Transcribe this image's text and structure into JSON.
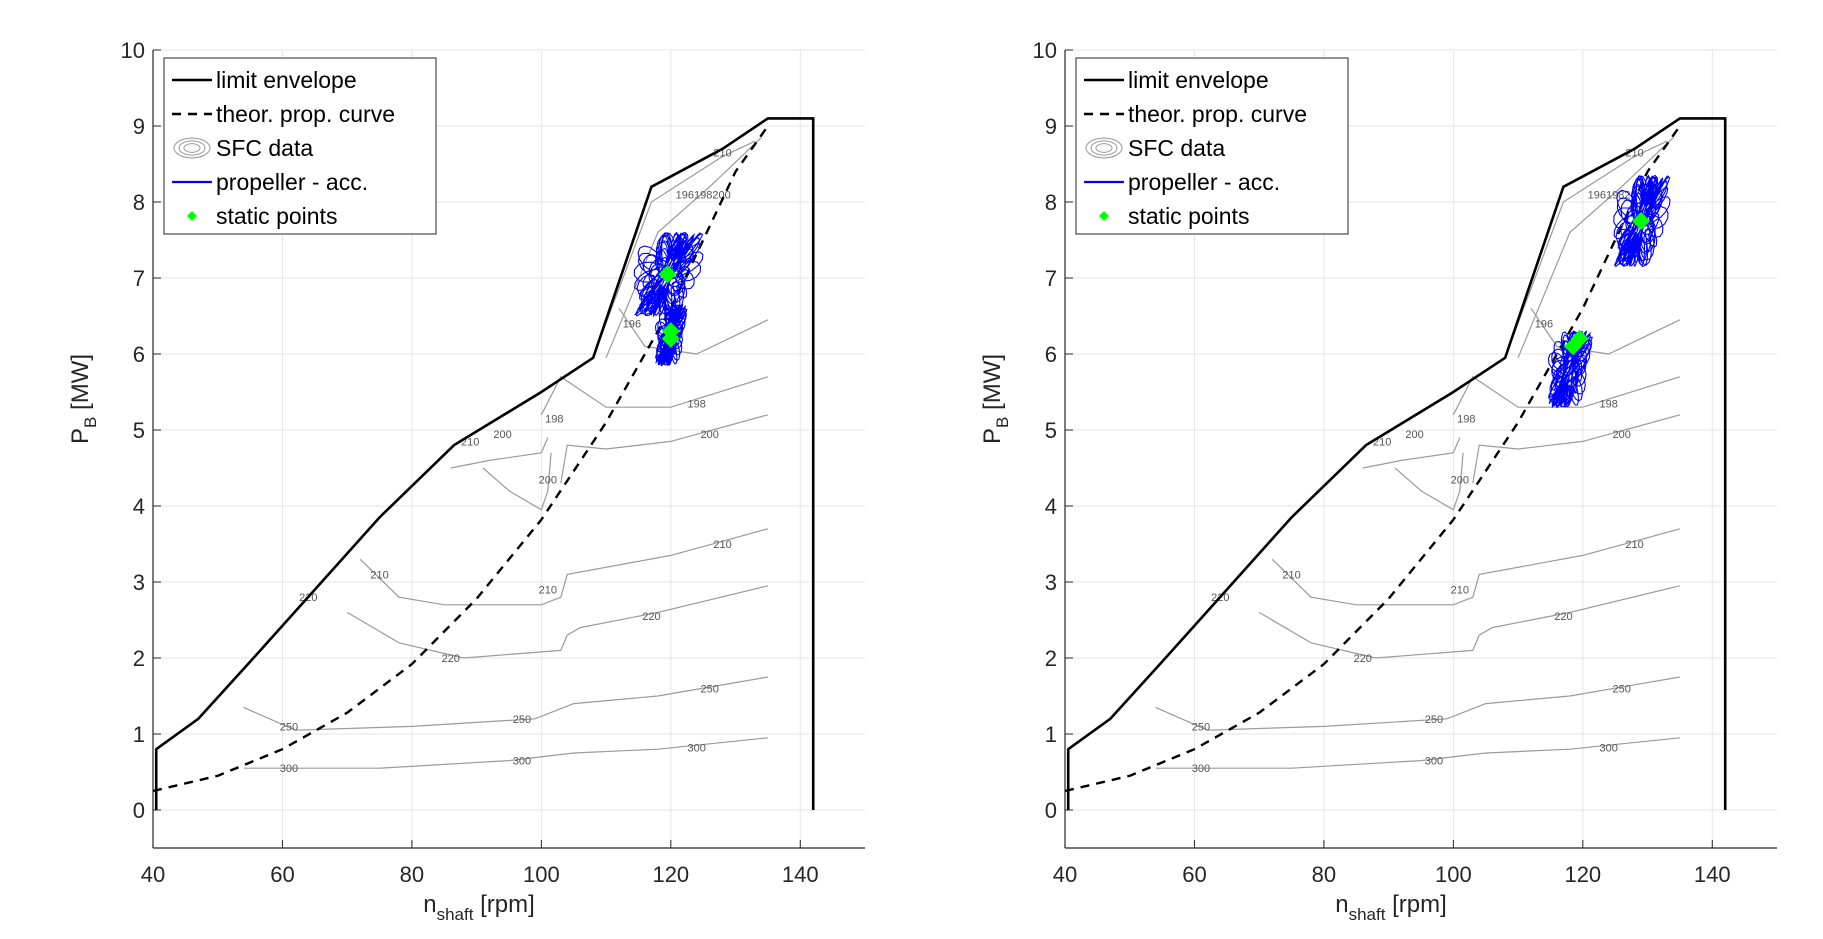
{
  "chart_data": [
    {
      "type": "line",
      "xlim": [
        40,
        150
      ],
      "ylim": [
        -0.5,
        10
      ],
      "x_ticks": [
        40,
        60,
        80,
        100,
        120,
        140
      ],
      "y_ticks": [
        0,
        1,
        2,
        3,
        4,
        5,
        6,
        7,
        8,
        9,
        10
      ],
      "xlabel": "n",
      "xlabel_sub": "shaft",
      "xlabel_unit": "[rpm]",
      "ylabel": "P",
      "ylabel_sub": "B",
      "ylabel_unit": "[MW]",
      "grid": true,
      "legend_position": "top-left",
      "legend": [
        "limit envelope",
        "theor. prop. curve",
        "SFC data",
        "propeller - acc.",
        "static points"
      ],
      "series": [
        {
          "name": "limit envelope",
          "color": "#000000",
          "style": "solid",
          "x": [
            40.5,
            40.5,
            47,
            55,
            65,
            75,
            86.5,
            100,
            108,
            117,
            128,
            135,
            142,
            142
          ],
          "y": [
            0,
            0.8,
            1.2,
            1.95,
            2.9,
            3.85,
            4.8,
            5.5,
            5.95,
            8.2,
            8.7,
            9.1,
            9.1,
            0
          ]
        },
        {
          "name": "theor. prop. curve",
          "color": "#000000",
          "style": "dashed",
          "x": [
            40,
            50,
            60,
            70,
            80,
            90,
            100,
            110,
            120,
            130,
            135
          ],
          "y": [
            0.25,
            0.45,
            0.8,
            1.28,
            1.92,
            2.78,
            3.82,
            5.1,
            6.6,
            8.4,
            9.0
          ]
        },
        {
          "name": "propeller - acc.",
          "color": "#0000ff",
          "style": "solid",
          "centers": [
            {
              "x": 119.5,
              "y": 7.05,
              "rx": 5.5,
              "ry": 0.55
            },
            {
              "x": 120,
              "y": 6.25,
              "rx": 2.5,
              "ry": 0.4
            }
          ]
        },
        {
          "name": "static points",
          "color": "#00ff00",
          "style": "marker",
          "points": [
            {
              "x": 119.5,
              "y": 7.05
            },
            {
              "x": 120,
              "y": 6.3
            },
            {
              "x": 120,
              "y": 6.2
            }
          ]
        }
      ],
      "contours": [
        {
          "label": "300",
          "x": [
            54,
            75,
            95,
            105,
            118,
            135
          ],
          "y": [
            0.55,
            0.55,
            0.65,
            0.75,
            0.8,
            0.95
          ],
          "labels_at": [
            {
              "x": 61,
              "y": 0.55
            },
            {
              "x": 97,
              "y": 0.65
            },
            {
              "x": 124,
              "y": 0.82
            }
          ]
        },
        {
          "label": "250",
          "x": [
            54,
            62,
            80,
            99,
            105,
            118,
            135
          ],
          "y": [
            1.35,
            1.05,
            1.1,
            1.2,
            1.4,
            1.5,
            1.75
          ],
          "labels_at": [
            {
              "x": 61,
              "y": 1.1
            },
            {
              "x": 97,
              "y": 1.2
            },
            {
              "x": 126,
              "y": 1.6
            }
          ]
        },
        {
          "label": "220",
          "x": [
            70,
            78,
            88,
            103,
            104,
            106,
            118,
            135
          ],
          "y": [
            2.6,
            2.2,
            2.0,
            2.1,
            2.3,
            2.4,
            2.6,
            2.95
          ],
          "labels_at": [
            {
              "x": 64,
              "y": 2.8
            },
            {
              "x": 86,
              "y": 2.0
            },
            {
              "x": 117,
              "y": 2.55
            }
          ]
        },
        {
          "label": "210",
          "x": [
            72,
            78,
            85,
            100,
            103,
            104,
            120,
            135
          ],
          "y": [
            3.3,
            2.8,
            2.7,
            2.7,
            2.8,
            3.1,
            3.35,
            3.7
          ],
          "labels_at": [
            {
              "x": 75,
              "y": 3.1
            },
            {
              "x": 101,
              "y": 2.9
            },
            {
              "x": 128,
              "y": 3.5
            }
          ]
        },
        {
          "label": "210",
          "x": [
            86,
            92,
            100,
            101
          ],
          "y": [
            4.5,
            4.6,
            4.7,
            4.9
          ],
          "labels_at": [
            {
              "x": 89,
              "y": 4.85
            }
          ]
        },
        {
          "label": "200",
          "x": [
            91,
            95,
            100,
            101,
            101.5
          ],
          "y": [
            4.5,
            4.2,
            3.95,
            4.2,
            4.7
          ],
          "labels_at": [
            {
              "x": 94,
              "y": 4.95
            },
            {
              "x": 101,
              "y": 4.35
            }
          ]
        },
        {
          "label": "200",
          "x": [
            103,
            104,
            110,
            120,
            135
          ],
          "y": [
            4.3,
            4.8,
            4.75,
            4.85,
            5.2
          ],
          "labels_at": [
            {
              "x": 126,
              "y": 4.95
            }
          ]
        },
        {
          "label": "198",
          "x": [
            100,
            103,
            110,
            120,
            135
          ],
          "y": [
            5.2,
            5.7,
            5.3,
            5.3,
            5.7
          ],
          "labels_at": [
            {
              "x": 102,
              "y": 5.15
            },
            {
              "x": 124,
              "y": 5.35
            }
          ]
        },
        {
          "label": "196",
          "x": [
            112,
            116,
            124,
            135
          ],
          "y": [
            6.6,
            6.1,
            6.0,
            6.45
          ],
          "labels_at": [
            {
              "x": 114,
              "y": 6.4
            }
          ]
        },
        {
          "label": "210",
          "x": [
            108,
            117,
            128,
            133
          ],
          "y": [
            5.95,
            8.0,
            8.6,
            8.8
          ],
          "labels_at": [
            {
              "x": 128,
              "y": 8.65
            }
          ]
        },
        {
          "label": "196198200",
          "x": [
            110,
            118,
            126,
            134
          ],
          "y": [
            5.95,
            7.6,
            8.2,
            8.85
          ],
          "labels_at": [
            {
              "x": 125,
              "y": 8.1
            }
          ]
        }
      ]
    },
    {
      "type": "line",
      "xlim": [
        40,
        150
      ],
      "ylim": [
        -0.5,
        10
      ],
      "x_ticks": [
        40,
        60,
        80,
        100,
        120,
        140
      ],
      "y_ticks": [
        0,
        1,
        2,
        3,
        4,
        5,
        6,
        7,
        8,
        9,
        10
      ],
      "xlabel": "n",
      "xlabel_sub": "shaft",
      "xlabel_unit": "[rpm]",
      "ylabel": "P",
      "ylabel_sub": "B",
      "ylabel_unit": "[MW]",
      "grid": true,
      "legend_position": "top-left",
      "legend": [
        "limit envelope",
        "theor. prop. curve",
        "SFC data",
        "propeller - acc.",
        "static points"
      ],
      "series": [
        {
          "name": "limit envelope",
          "color": "#000000",
          "style": "solid",
          "x": [
            40.5,
            40.5,
            47,
            55,
            65,
            75,
            86.5,
            100,
            108,
            117,
            128,
            135,
            142,
            142
          ],
          "y": [
            0,
            0.8,
            1.2,
            1.95,
            2.9,
            3.85,
            4.8,
            5.5,
            5.95,
            8.2,
            8.7,
            9.1,
            9.1,
            0
          ]
        },
        {
          "name": "theor. prop. curve",
          "color": "#000000",
          "style": "dashed",
          "x": [
            40,
            50,
            60,
            70,
            80,
            90,
            100,
            110,
            120,
            130,
            135
          ],
          "y": [
            0.25,
            0.45,
            0.8,
            1.28,
            1.92,
            2.78,
            3.82,
            5.1,
            6.6,
            8.4,
            9.0
          ]
        },
        {
          "name": "propeller - acc.",
          "color": "#0000ff",
          "style": "solid",
          "centers": [
            {
              "x": 129,
              "y": 7.75,
              "rx": 4.5,
              "ry": 0.6
            },
            {
              "x": 118,
              "y": 5.8,
              "rx": 3.5,
              "ry": 0.5
            }
          ]
        },
        {
          "name": "static points",
          "color": "#00ff00",
          "style": "marker",
          "points": [
            {
              "x": 129,
              "y": 7.75
            },
            {
              "x": 118.5,
              "y": 6.1
            },
            {
              "x": 119.5,
              "y": 6.2
            }
          ]
        }
      ],
      "contours": [
        {
          "label": "300",
          "x": [
            54,
            75,
            95,
            105,
            118,
            135
          ],
          "y": [
            0.55,
            0.55,
            0.65,
            0.75,
            0.8,
            0.95
          ],
          "labels_at": [
            {
              "x": 61,
              "y": 0.55
            },
            {
              "x": 97,
              "y": 0.65
            },
            {
              "x": 124,
              "y": 0.82
            }
          ]
        },
        {
          "label": "250",
          "x": [
            54,
            62,
            80,
            99,
            105,
            118,
            135
          ],
          "y": [
            1.35,
            1.05,
            1.1,
            1.2,
            1.4,
            1.5,
            1.75
          ],
          "labels_at": [
            {
              "x": 61,
              "y": 1.1
            },
            {
              "x": 97,
              "y": 1.2
            },
            {
              "x": 126,
              "y": 1.6
            }
          ]
        },
        {
          "label": "220",
          "x": [
            70,
            78,
            88,
            103,
            104,
            106,
            118,
            135
          ],
          "y": [
            2.6,
            2.2,
            2.0,
            2.1,
            2.3,
            2.4,
            2.6,
            2.95
          ],
          "labels_at": [
            {
              "x": 64,
              "y": 2.8
            },
            {
              "x": 86,
              "y": 2.0
            },
            {
              "x": 117,
              "y": 2.55
            }
          ]
        },
        {
          "label": "210",
          "x": [
            72,
            78,
            85,
            100,
            103,
            104,
            120,
            135
          ],
          "y": [
            3.3,
            2.8,
            2.7,
            2.7,
            2.8,
            3.1,
            3.35,
            3.7
          ],
          "labels_at": [
            {
              "x": 75,
              "y": 3.1
            },
            {
              "x": 101,
              "y": 2.9
            },
            {
              "x": 128,
              "y": 3.5
            }
          ]
        },
        {
          "label": "210",
          "x": [
            86,
            92,
            100,
            101
          ],
          "y": [
            4.5,
            4.6,
            4.7,
            4.9
          ],
          "labels_at": [
            {
              "x": 89,
              "y": 4.85
            }
          ]
        },
        {
          "label": "200",
          "x": [
            91,
            95,
            100,
            101,
            101.5
          ],
          "y": [
            4.5,
            4.2,
            3.95,
            4.2,
            4.7
          ],
          "labels_at": [
            {
              "x": 94,
              "y": 4.95
            },
            {
              "x": 101,
              "y": 4.35
            }
          ]
        },
        {
          "label": "200",
          "x": [
            103,
            104,
            110,
            120,
            135
          ],
          "y": [
            4.3,
            4.8,
            4.75,
            4.85,
            5.2
          ],
          "labels_at": [
            {
              "x": 126,
              "y": 4.95
            }
          ]
        },
        {
          "label": "198",
          "x": [
            100,
            103,
            110,
            120,
            135
          ],
          "y": [
            5.2,
            5.7,
            5.3,
            5.3,
            5.7
          ],
          "labels_at": [
            {
              "x": 102,
              "y": 5.15
            },
            {
              "x": 124,
              "y": 5.35
            }
          ]
        },
        {
          "label": "196",
          "x": [
            112,
            116,
            124,
            135
          ],
          "y": [
            6.6,
            6.1,
            6.0,
            6.45
          ],
          "labels_at": [
            {
              "x": 114,
              "y": 6.4
            }
          ]
        },
        {
          "label": "210",
          "x": [
            108,
            117,
            128,
            133
          ],
          "y": [
            5.95,
            8.0,
            8.6,
            8.8
          ],
          "labels_at": [
            {
              "x": 128,
              "y": 8.65
            }
          ]
        },
        {
          "label": "196198200",
          "x": [
            110,
            118,
            126,
            134
          ],
          "y": [
            5.95,
            7.6,
            8.2,
            8.85
          ],
          "labels_at": [
            {
              "x": 125,
              "y": 8.1
            }
          ]
        }
      ]
    }
  ]
}
